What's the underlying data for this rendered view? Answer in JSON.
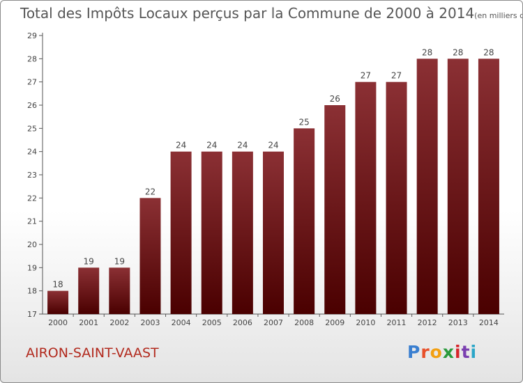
{
  "title": "Total des Impôts Locaux perçus par la Commune de 2000 à 2014",
  "unit": "(en milliers d'€)",
  "commune": "AIRON-SAINT-VAAST",
  "logo": "Proxiti",
  "chart_data": {
    "type": "bar",
    "title": "Total des Impôts Locaux perçus par la Commune de 2000 à 2014",
    "subtitle": "(en milliers d'€)",
    "xlabel": "",
    "ylabel": "",
    "categories": [
      "2000",
      "2001",
      "2002",
      "2003",
      "2004",
      "2005",
      "2006",
      "2007",
      "2008",
      "2009",
      "2010",
      "2011",
      "2012",
      "2013",
      "2014"
    ],
    "values": [
      18,
      19,
      19,
      22,
      24,
      24,
      24,
      24,
      25,
      26,
      27,
      27,
      28,
      28,
      28
    ],
    "ylim": [
      17,
      29
    ],
    "yticks": [
      17,
      18,
      19,
      20,
      21,
      22,
      23,
      24,
      25,
      26,
      27,
      28,
      29
    ],
    "grid": false,
    "legend": "none",
    "bar_color_top": "#8b3034",
    "bar_color_bottom": "#4a0000"
  }
}
